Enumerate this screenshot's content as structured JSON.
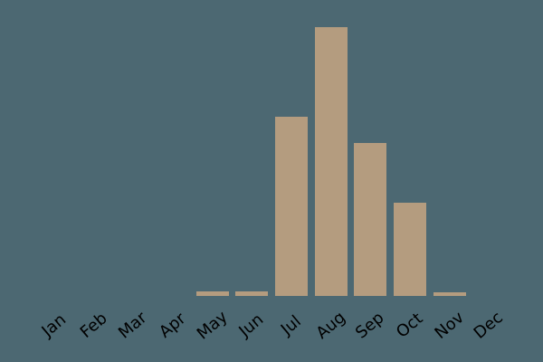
{
  "chart_data": {
    "type": "bar",
    "title": "",
    "xlabel": "",
    "ylabel": "",
    "categories": [
      "Jan",
      "Feb",
      "Mar",
      "Apr",
      "May",
      "Jun",
      "Jul",
      "Aug",
      "Sep",
      "Oct",
      "Nov",
      "Dec"
    ],
    "values": [
      0,
      0,
      0,
      0,
      5,
      5,
      198,
      297,
      169,
      103,
      4,
      0
    ],
    "ylim": [
      0,
      310
    ],
    "grid": false,
    "legend": "none",
    "axes_visible": false,
    "tick_label_rotation_deg": 40,
    "colors": {
      "background": "#4c6872",
      "bar": "#b49c7f",
      "tick_label": "#000000"
    }
  }
}
